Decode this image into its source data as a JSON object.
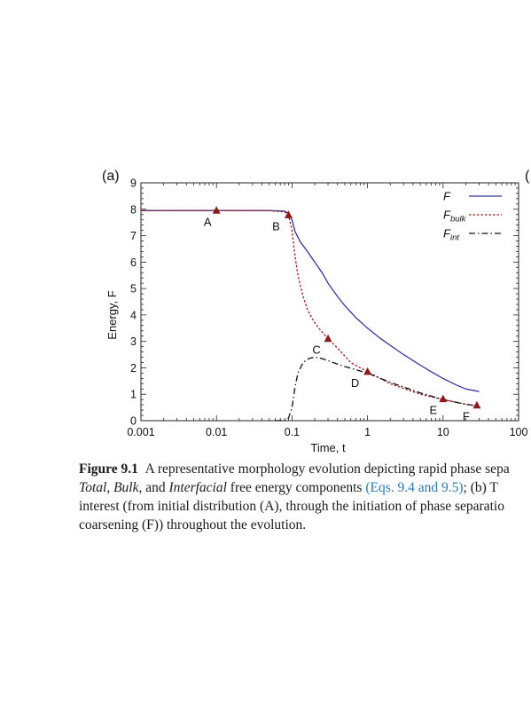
{
  "figure": {
    "panel_label": "(a)",
    "next_panel_label": "(",
    "chart_data": {
      "type": "line",
      "xscale": "log",
      "xlim": [
        0.001,
        100
      ],
      "ylim": [
        0,
        9
      ],
      "xlabel": "Time, t",
      "ylabel": "Energy, F",
      "xticks": [
        "0.001",
        "0.01",
        "0.1",
        "1",
        "10",
        "100"
      ],
      "yticks": [
        "0",
        "1",
        "2",
        "3",
        "4",
        "5",
        "6",
        "7",
        "8",
        "9"
      ],
      "grid": false,
      "legend_position": "top-right",
      "series": [
        {
          "name": "F",
          "color": "#33339a",
          "dash": "solid",
          "x": [
            0.001,
            0.01,
            0.05,
            0.08,
            0.09,
            0.1,
            0.11,
            0.13,
            0.16,
            0.2,
            0.25,
            0.3,
            0.4,
            0.5,
            0.7,
            1,
            1.5,
            2,
            3,
            5,
            7,
            10,
            15,
            20,
            30
          ],
          "y": [
            7.95,
            7.95,
            7.95,
            7.93,
            7.85,
            7.6,
            7.15,
            6.75,
            6.4,
            6.0,
            5.6,
            5.2,
            4.7,
            4.35,
            3.9,
            3.5,
            3.1,
            2.85,
            2.5,
            2.1,
            1.85,
            1.6,
            1.35,
            1.2,
            1.1
          ]
        },
        {
          "name": "Fbulk",
          "color": "#a01c1c",
          "dash": "dotted",
          "x": [
            0.001,
            0.01,
            0.05,
            0.08,
            0.09,
            0.1,
            0.11,
            0.12,
            0.14,
            0.16,
            0.2,
            0.25,
            0.3,
            0.4,
            0.6,
            1,
            2,
            5,
            10,
            20,
            30
          ],
          "y": [
            7.95,
            7.95,
            7.95,
            7.9,
            7.78,
            7.2,
            6.2,
            5.5,
            4.7,
            4.2,
            3.7,
            3.35,
            3.1,
            2.75,
            2.2,
            1.85,
            1.4,
            1.0,
            0.8,
            0.62,
            0.55
          ]
        },
        {
          "name": "Fint",
          "color": "#111111",
          "dash": "dashdot",
          "x": [
            0.06,
            0.08,
            0.09,
            0.1,
            0.11,
            0.12,
            0.14,
            0.17,
            0.2,
            0.25,
            0.35,
            0.5,
            1,
            2,
            5,
            10,
            20,
            30
          ],
          "y": [
            0,
            0.01,
            0.1,
            0.5,
            1.3,
            1.8,
            2.2,
            2.36,
            2.4,
            2.35,
            2.2,
            2.05,
            1.8,
            1.45,
            1.05,
            0.8,
            0.62,
            0.55
          ]
        }
      ],
      "markers": [
        {
          "label": "A",
          "x": 0.01,
          "y": 7.95
        },
        {
          "label": "B",
          "x": 0.09,
          "y": 7.78
        },
        {
          "label": "C",
          "x": 0.3,
          "y": 3.1
        },
        {
          "label": "D",
          "x": 1,
          "y": 1.85
        },
        {
          "label": "E",
          "x": 10,
          "y": 0.82
        },
        {
          "label": "F",
          "x": 28,
          "y": 0.58
        }
      ],
      "marker_color": "#8b1a1a",
      "legend": [
        {
          "main": "F",
          "sub": ""
        },
        {
          "main": "F",
          "sub": "bulk"
        },
        {
          "main": "F",
          "sub": "int"
        }
      ]
    }
  },
  "caption": {
    "label": "Figure 9.1",
    "line1": "A representative morphology evolution depicting rapid phase sepa",
    "line2_total": "Total",
    "line2_sep1": ", ",
    "line2_bulk": "Bulk",
    "line2_sep2": ", and ",
    "line2_interfacial": "Interfacial",
    "line2_mid": " free energy components ",
    "line2_link": "(Eqs. 9.4 and 9.5)",
    "line2_end": "; (b) T",
    "line3": "interest (from initial distribution (A), through the initiation of phase separatio",
    "line4": "coarsening (F)) throughout the evolution."
  }
}
